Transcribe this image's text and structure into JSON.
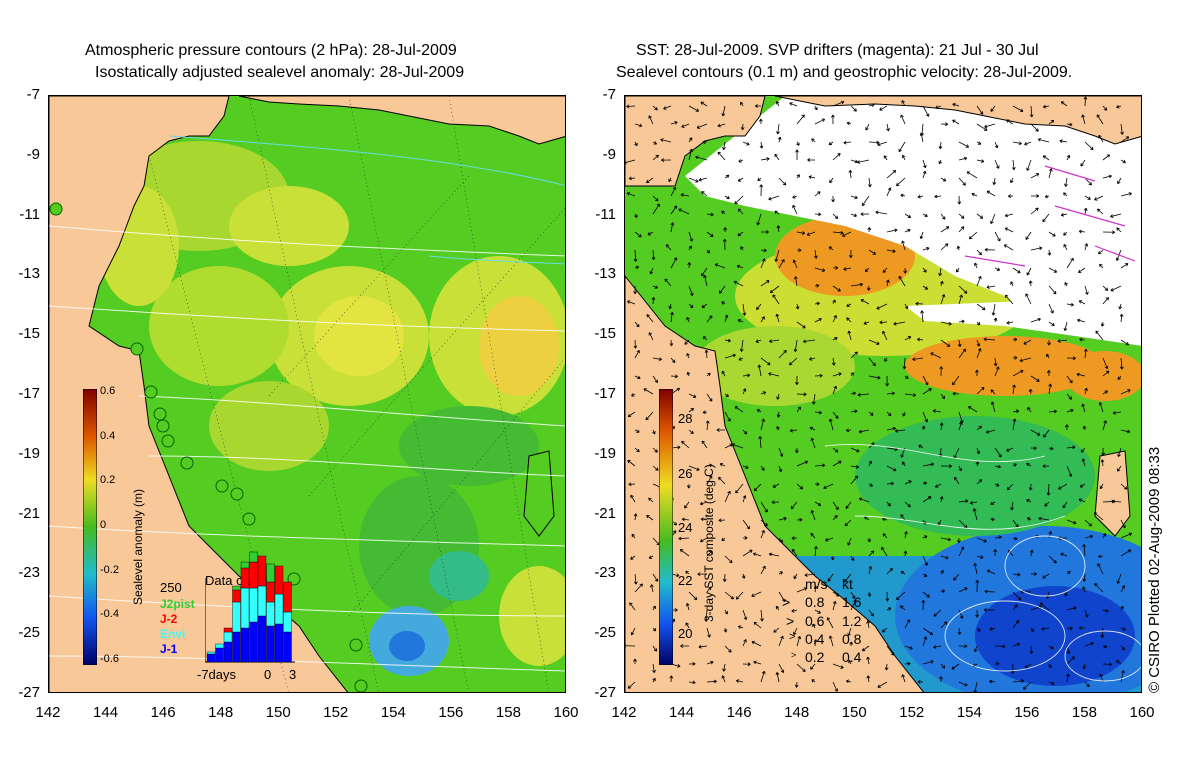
{
  "left_panel": {
    "title_line1": "Atmospheric pressure contours (2 hPa): 28-Jul-2009",
    "title_line2": "Isostatically adjusted sealevel anomaly: 28-Jul-2009",
    "colorbar": {
      "label": "Sealevel anomaly (m)",
      "ticks": [
        "0.6",
        "0.4",
        "0.2",
        "0",
        "-0.2",
        "-0.4",
        "-0.6"
      ]
    },
    "data_count": {
      "title": "Data count",
      "ymax_label": "250",
      "xlabels": [
        "-7days",
        "0",
        "3"
      ],
      "satellites": [
        {
          "name": "J2pist",
          "color": "#33cc33"
        },
        {
          "name": "J-2",
          "color": "#ff0000"
        },
        {
          "name": "Envi",
          "color": "#33ffff"
        },
        {
          "name": "J-1",
          "color": "#0000ff"
        }
      ]
    }
  },
  "right_panel": {
    "title_line1": "SST: 28-Jul-2009. SVP drifters (magenta): 21 Jul - 30 Jul",
    "title_line2": "Sealevel contours (0.1 m) and geostrophic velocity: 28-Jul-2009.",
    "colorbar": {
      "label": "3-day SST composite (deg C)",
      "ticks": [
        "28",
        "26",
        "24",
        "22",
        "20"
      ]
    },
    "velocity_legend": {
      "header_ms": "m/s",
      "header_kt": "kt",
      "rows": [
        {
          "ms": "0.8",
          "kt": "1.6"
        },
        {
          "ms": "0.6",
          "kt": "1.2"
        },
        {
          "ms": "0.4",
          "kt": "0.8"
        },
        {
          "ms": "0.2",
          "kt": "0.4"
        }
      ]
    }
  },
  "axes": {
    "y_labels": [
      "-7",
      "-9",
      "-11",
      "-13",
      "-15",
      "-17",
      "-19",
      "-21",
      "-23",
      "-25",
      "-27"
    ],
    "x_labels": [
      "142",
      "144",
      "146",
      "148",
      "150",
      "152",
      "154",
      "156",
      "158",
      "160"
    ]
  },
  "copyright": "© CSIRO Plotted 02-Aug-2009 08:33"
}
